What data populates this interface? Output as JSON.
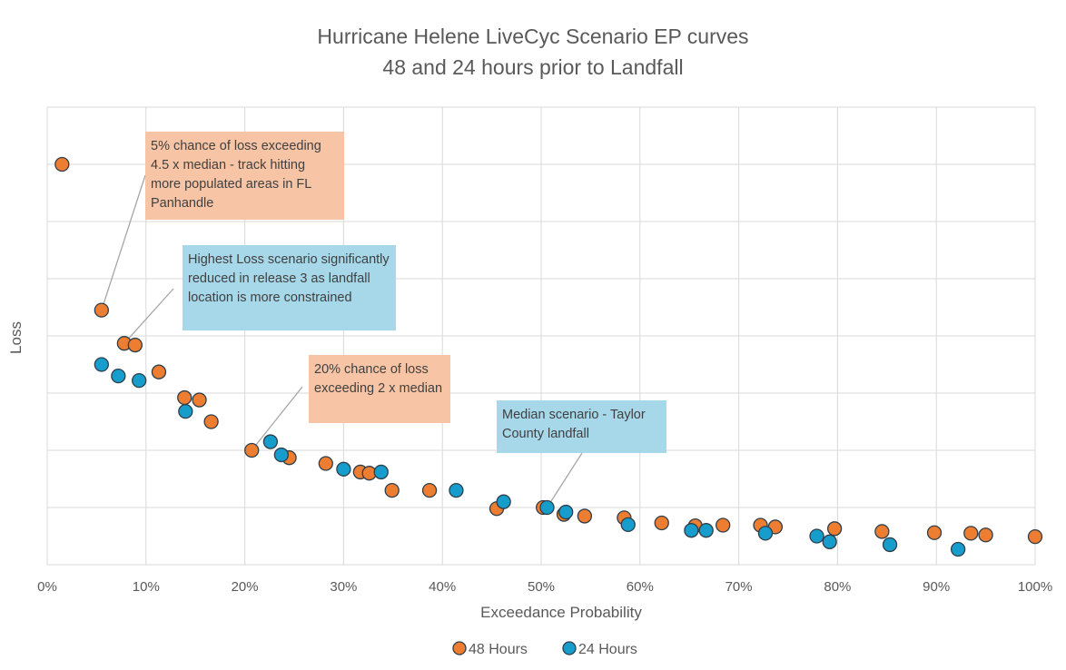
{
  "colors": {
    "series_48": "#ed7d31",
    "series_24": "#179dcc",
    "marker_edge": "#2f3e4a",
    "grid": "#d9d9d9",
    "leader": "#a6a6a6"
  },
  "chart_data": {
    "type": "scatter",
    "title": [
      "Hurricane Helene LiveCyc Scenario EP curves",
      "48 and 24 hours prior to Landfall"
    ],
    "xlabel": "Exceedance Probability",
    "ylabel": "Loss",
    "xlim": [
      0,
      1
    ],
    "ylim": [
      0,
      8
    ],
    "x_ticks": [
      0,
      0.1,
      0.2,
      0.3,
      0.4,
      0.5,
      0.6,
      0.7,
      0.8,
      0.9,
      1.0
    ],
    "x_tick_labels": [
      "0%",
      "10%",
      "20%",
      "30%",
      "40%",
      "50%",
      "60%",
      "70%",
      "80%",
      "90%",
      "100%"
    ],
    "y_ticks_shown": false,
    "grid": true,
    "legend_position": "bottom",
    "legend": [
      "48 Hours",
      "24 Hours"
    ],
    "series": [
      {
        "name": "48 Hours",
        "color": "#ed7d31",
        "x": [
          0.015,
          0.055,
          0.078,
          0.089,
          0.113,
          0.139,
          0.154,
          0.166,
          0.207,
          0.245,
          0.282,
          0.317,
          0.326,
          0.349,
          0.387,
          0.455,
          0.502,
          0.523,
          0.544,
          0.584,
          0.622,
          0.656,
          0.684,
          0.722,
          0.737,
          0.797,
          0.845,
          0.898,
          0.935,
          0.95,
          1.0
        ],
        "y": [
          7.0,
          4.45,
          3.87,
          3.84,
          3.37,
          2.92,
          2.88,
          2.5,
          2.0,
          1.87,
          1.77,
          1.62,
          1.6,
          1.3,
          1.3,
          0.98,
          1.0,
          0.88,
          0.85,
          0.82,
          0.73,
          0.68,
          0.69,
          0.69,
          0.66,
          0.63,
          0.58,
          0.56,
          0.55,
          0.52,
          0.49
        ]
      },
      {
        "name": "24 Hours",
        "color": "#179dcc",
        "x": [
          0.055,
          0.072,
          0.093,
          0.14,
          0.226,
          0.237,
          0.3,
          0.338,
          0.414,
          0.462,
          0.506,
          0.525,
          0.588,
          0.652,
          0.667,
          0.727,
          0.779,
          0.792,
          0.853,
          0.922
        ],
        "y": [
          3.5,
          3.3,
          3.22,
          2.68,
          2.15,
          1.92,
          1.67,
          1.62,
          1.3,
          1.1,
          1.0,
          0.92,
          0.7,
          0.6,
          0.6,
          0.55,
          0.5,
          0.4,
          0.35,
          0.27
        ]
      }
    ],
    "annotations": [
      {
        "id": "ann-5pct",
        "text": "5% chance of loss exceeding 4.5 x median - track hitting more populated areas in FL Panhandle",
        "color": "orange",
        "point": [
          0.055,
          4.45
        ]
      },
      {
        "id": "ann-highest",
        "text": "Highest Loss scenario significantly reduced in release 3 as landfall location is more constrained",
        "color": "blue",
        "point": [
          0.078,
          3.87
        ]
      },
      {
        "id": "ann-20pct",
        "text": "20% chance of loss exceeding 2 x median",
        "color": "orange",
        "point": [
          0.207,
          2.0
        ]
      },
      {
        "id": "ann-median",
        "text": "Median scenario - Taylor County landfall",
        "color": "blue",
        "point": [
          0.506,
          1.0
        ]
      }
    ]
  }
}
